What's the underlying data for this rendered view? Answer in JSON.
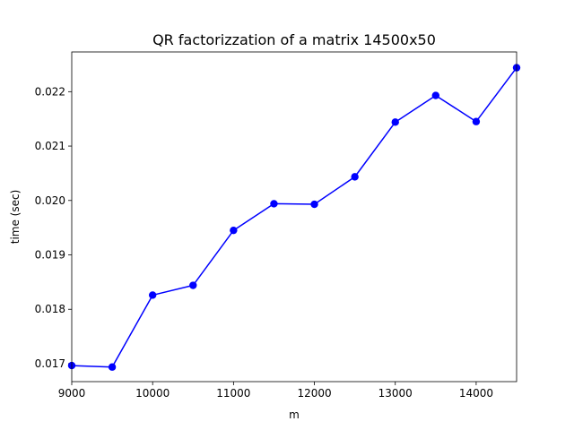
{
  "chart_data": {
    "type": "line",
    "title": "QR factorizzation of a matrix 14500x50",
    "xlabel": "m",
    "ylabel": "time (sec)",
    "xlim": [
      9000,
      14500
    ],
    "ylim": [
      0.01667,
      0.02273
    ],
    "x_ticks": [
      9000,
      10000,
      11000,
      12000,
      13000,
      14000
    ],
    "x_tick_labels": [
      "9000",
      "10000",
      "11000",
      "12000",
      "13000",
      "14000"
    ],
    "y_ticks": [
      0.017,
      0.018,
      0.019,
      0.02,
      0.021,
      0.022
    ],
    "y_tick_labels": [
      "0.017",
      "0.018",
      "0.019",
      "0.020",
      "0.021",
      "0.022"
    ],
    "grid": false,
    "series": [
      {
        "color": "#0000ff",
        "marker": "circle",
        "x": [
          9000,
          9500,
          10000,
          10500,
          11000,
          11500,
          12000,
          12500,
          13000,
          13500,
          14000,
          14500
        ],
        "y": [
          0.016965,
          0.016938,
          0.01826,
          0.01844,
          0.01945,
          0.01994,
          0.01993,
          0.020435,
          0.02144,
          0.02193,
          0.02145,
          0.02244
        ]
      }
    ]
  }
}
